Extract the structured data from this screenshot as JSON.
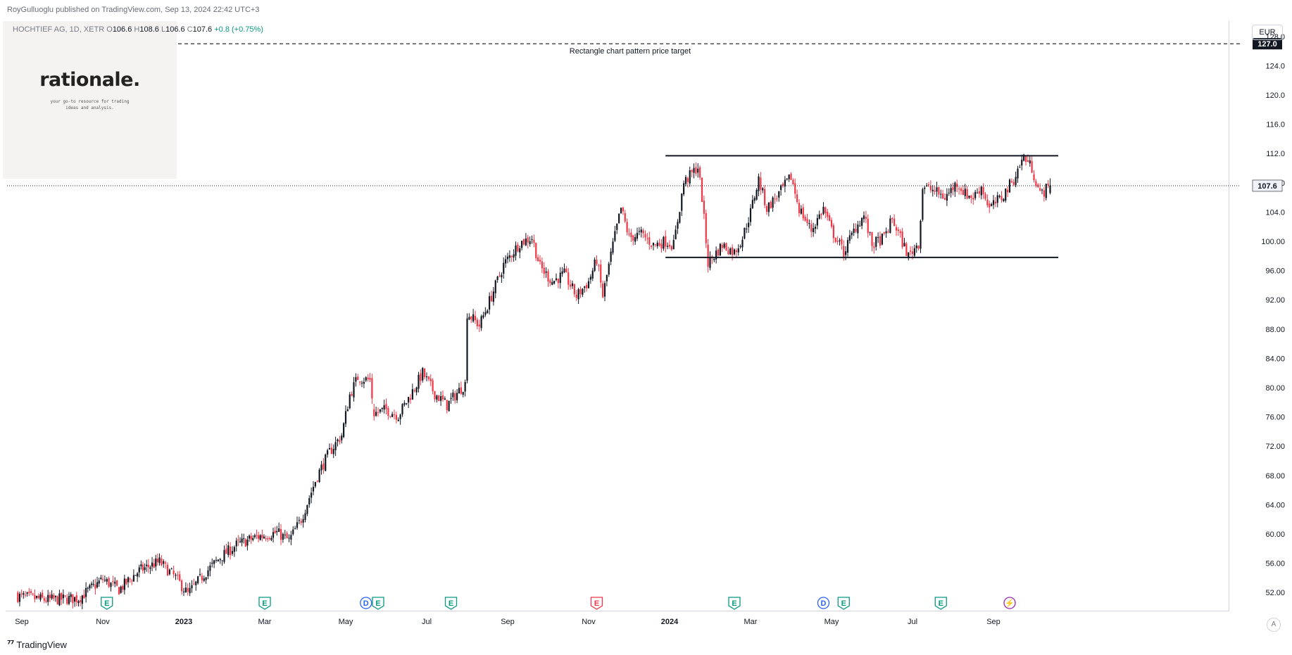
{
  "header": {
    "publisher": "RoyGulluoglu published on TradingView.com,",
    "datetime": "Sep 13, 2024 22:42 UTC+3"
  },
  "legend": {
    "symbol": "HOCHTIEF AG, 1D, XETR",
    "open_label": "O",
    "open": "106.6",
    "high_label": "H",
    "high": "108.6",
    "low_label": "L",
    "low": "106.6",
    "close_label": "C",
    "close": "107.6",
    "change": "+0.8 (+0.75%)"
  },
  "logo": {
    "name": "rationale.",
    "tagline_line1": "your go-to resource for trading",
    "tagline_line2": "ideas and analysis."
  },
  "currency": "EUR",
  "auto_label": "A",
  "footer": {
    "brand": "TradingView",
    "icon": "tradingview-logo-icon"
  },
  "colors": {
    "up": "#131722",
    "down": "#f23645",
    "axis_text": "#131722",
    "earnings": "#089981",
    "dividend": "#2962ff",
    "earnings_miss": "#f23645",
    "split": "#9c27b0"
  },
  "chart_data": {
    "type": "candlestick",
    "symbol": "HOCHTIEF AG",
    "interval": "1D",
    "exchange": "XETR",
    "currency": "EUR",
    "ylim": [
      50.0,
      128.0
    ],
    "yticks": [
      "52.00",
      "56.00",
      "60.00",
      "64.00",
      "68.00",
      "72.00",
      "76.00",
      "80.00",
      "84.00",
      "88.00",
      "92.00",
      "96.00",
      "100.00",
      "104.0",
      "108.0",
      "112.0",
      "116.0",
      "120.0",
      "124.0",
      "128.0"
    ],
    "xticks": [
      {
        "label": "Sep",
        "month": 0
      },
      {
        "label": "Nov",
        "month": 2
      },
      {
        "label": "2023",
        "month": 4,
        "bold": true
      },
      {
        "label": "Mar",
        "month": 6
      },
      {
        "label": "May",
        "month": 8
      },
      {
        "label": "Jul",
        "month": 10
      },
      {
        "label": "Sep",
        "month": 12
      },
      {
        "label": "Nov",
        "month": 14
      },
      {
        "label": "2024",
        "month": 16,
        "bold": true
      },
      {
        "label": "Mar",
        "month": 18
      },
      {
        "label": "May",
        "month": 20
      },
      {
        "label": "Jul",
        "month": 22
      },
      {
        "label": "Sep",
        "month": 24
      }
    ],
    "x_end_month": 24.7,
    "price_path": [
      [
        -0.1,
        51.5
      ],
      [
        0.6,
        51.0
      ],
      [
        1.4,
        51.2
      ],
      [
        2.0,
        53.8
      ],
      [
        2.4,
        52.4
      ],
      [
        2.9,
        55.0
      ],
      [
        3.4,
        56.2
      ],
      [
        3.8,
        54.0
      ],
      [
        4.1,
        51.8
      ],
      [
        4.5,
        54.5
      ],
      [
        4.9,
        56.8
      ],
      [
        5.3,
        58.5
      ],
      [
        5.8,
        59.6
      ],
      [
        6.3,
        60.2
      ],
      [
        6.6,
        59.1
      ],
      [
        6.9,
        62.0
      ],
      [
        7.3,
        68.0
      ],
      [
        7.6,
        71.2
      ],
      [
        7.9,
        73.5
      ],
      [
        8.1,
        79.0
      ],
      [
        8.3,
        81.4
      ],
      [
        8.6,
        81.0
      ],
      [
        8.7,
        76.5
      ],
      [
        9.0,
        77.0
      ],
      [
        9.3,
        76.2
      ],
      [
        9.6,
        79.0
      ],
      [
        9.9,
        82.0
      ],
      [
        10.2,
        79.2
      ],
      [
        10.5,
        77.6
      ],
      [
        10.8,
        79.6
      ],
      [
        10.95,
        80.5
      ],
      [
        11.0,
        90.2
      ],
      [
        11.3,
        88.5
      ],
      [
        11.6,
        92.5
      ],
      [
        11.9,
        96.8
      ],
      [
        12.3,
        99.8
      ],
      [
        12.6,
        100.5
      ],
      [
        12.8,
        96.5
      ],
      [
        13.1,
        94.5
      ],
      [
        13.4,
        95.5
      ],
      [
        13.7,
        92.5
      ],
      [
        14.0,
        94.5
      ],
      [
        14.2,
        97.5
      ],
      [
        14.35,
        92.5
      ],
      [
        14.6,
        99.5
      ],
      [
        14.8,
        104.5
      ],
      [
        15.0,
        100.5
      ],
      [
        15.3,
        101.0
      ],
      [
        15.6,
        99.5
      ],
      [
        15.9,
        100.0
      ],
      [
        16.1,
        99.5
      ],
      [
        16.35,
        108.0
      ],
      [
        16.7,
        110.2
      ],
      [
        16.8,
        106.0
      ],
      [
        16.95,
        97.0
      ],
      [
        17.3,
        99.5
      ],
      [
        17.6,
        98.5
      ],
      [
        17.8,
        100.5
      ],
      [
        18.0,
        104.0
      ],
      [
        18.2,
        108.5
      ],
      [
        18.4,
        104.5
      ],
      [
        18.7,
        106.5
      ],
      [
        19.0,
        108.8
      ],
      [
        19.2,
        104.5
      ],
      [
        19.5,
        101.5
      ],
      [
        19.8,
        104.5
      ],
      [
        20.0,
        101.5
      ],
      [
        20.3,
        98.5
      ],
      [
        20.6,
        102.0
      ],
      [
        20.8,
        103.5
      ],
      [
        21.0,
        99.5
      ],
      [
        21.3,
        100.5
      ],
      [
        21.5,
        103.0
      ],
      [
        21.7,
        100.5
      ],
      [
        21.9,
        98.0
      ],
      [
        22.15,
        99.8
      ],
      [
        22.2,
        103.0
      ],
      [
        22.25,
        107.5
      ],
      [
        22.5,
        107.0
      ],
      [
        22.8,
        106.0
      ],
      [
        23.1,
        108.0
      ],
      [
        23.3,
        106.5
      ],
      [
        23.5,
        106.0
      ],
      [
        23.7,
        107.5
      ],
      [
        23.9,
        104.5
      ],
      [
        24.2,
        106.0
      ],
      [
        24.5,
        108.5
      ],
      [
        24.75,
        111.6
      ],
      [
        24.95,
        110.0
      ],
      [
        25.15,
        106.4
      ],
      [
        25.4,
        107.6
      ]
    ],
    "gaps": [
      {
        "after_month": 8.7,
        "note": "price gap in Apr-May 2023"
      },
      {
        "after_month": 22.1,
        "note": "price gap in Jun 2024"
      }
    ],
    "last_price": 107.6,
    "annotations": [
      {
        "type": "horizontal-dashed",
        "price": 127.0,
        "label": "Rectangle chart pattern price target",
        "price_label": "127.0"
      },
      {
        "type": "line",
        "price": 111.7,
        "from_month": 15.9,
        "to_month": 25.6
      },
      {
        "type": "line",
        "price": 97.8,
        "from_month": 15.9,
        "to_month": 25.6
      },
      {
        "type": "last-price-line",
        "price": 107.6,
        "price_label": "107.6"
      }
    ],
    "events": [
      {
        "label": "E",
        "month": 2.1,
        "kind": "earnings"
      },
      {
        "label": "E",
        "month": 6.0,
        "kind": "earnings"
      },
      {
        "label": "D",
        "month": 8.5,
        "kind": "dividend"
      },
      {
        "label": "E",
        "month": 8.8,
        "kind": "earnings"
      },
      {
        "label": "E",
        "month": 10.6,
        "kind": "earnings"
      },
      {
        "label": "E",
        "month": 14.2,
        "kind": "earnings_miss"
      },
      {
        "label": "E",
        "month": 17.6,
        "kind": "earnings"
      },
      {
        "label": "D",
        "month": 19.8,
        "kind": "dividend"
      },
      {
        "label": "E",
        "month": 20.3,
        "kind": "earnings"
      },
      {
        "label": "E",
        "month": 22.7,
        "kind": "earnings"
      },
      {
        "label": "⚡",
        "month": 24.4,
        "kind": "split"
      }
    ]
  }
}
